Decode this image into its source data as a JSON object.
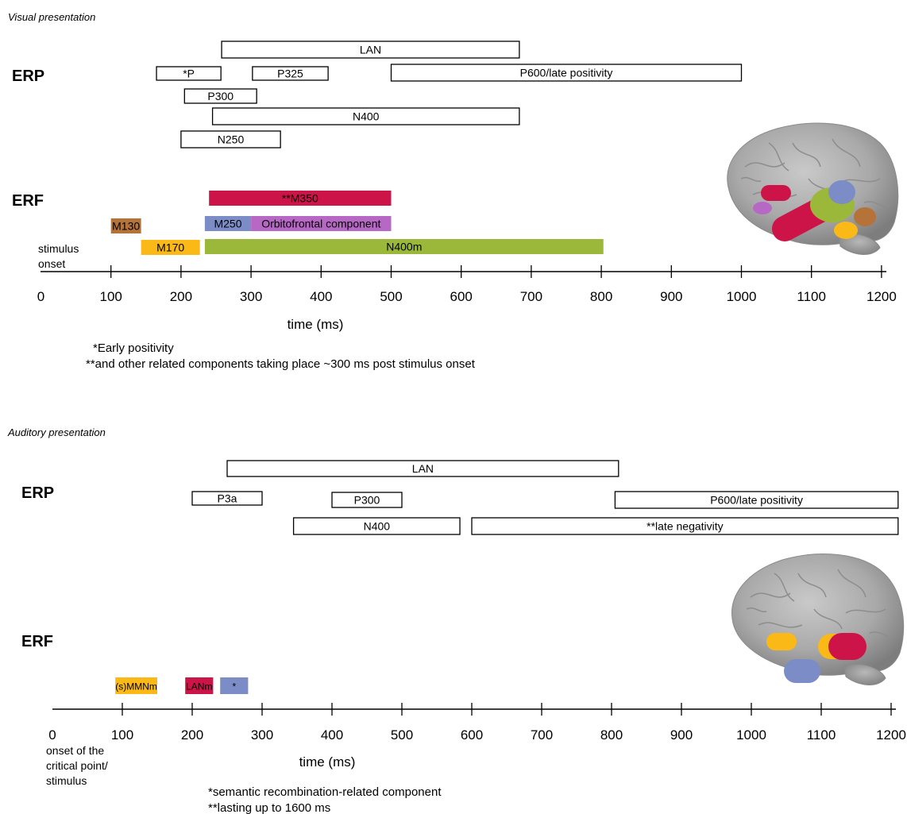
{
  "visual": {
    "section_title": "Visual presentation",
    "erp_label": "ERP",
    "erf_label": "ERF",
    "erp": [
      {
        "key": "lan",
        "label": "LAN",
        "start": 258,
        "end": 683
      },
      {
        "key": "early-positivity",
        "label": "*P",
        "start": 165,
        "end": 257
      },
      {
        "key": "p325",
        "label": "P325",
        "start": 302,
        "end": 410
      },
      {
        "key": "p600",
        "label": "P600/late positivity",
        "start": 500,
        "end": 1000
      },
      {
        "key": "p300",
        "label": "P300",
        "start": 205,
        "end": 308
      },
      {
        "key": "n400",
        "label": "N400",
        "start": 245,
        "end": 683
      },
      {
        "key": "n250",
        "label": "N250",
        "start": 200,
        "end": 342
      }
    ],
    "erf": [
      {
        "key": "m350",
        "label": "**M350",
        "start": 240,
        "end": 500,
        "color": "#cc1448"
      },
      {
        "key": "m130",
        "label": "M130",
        "start": 100,
        "end": 143,
        "color": "#b5733a"
      },
      {
        "key": "m250",
        "label": "M250",
        "start": 234,
        "end": 300,
        "color": "#7b8cc7"
      },
      {
        "key": "orbitofrontal",
        "label": "Orbitofrontal component",
        "start": 300,
        "end": 500,
        "color": "#b768c4"
      },
      {
        "key": "m170",
        "label": "M170",
        "start": 143,
        "end": 227,
        "color": "#fbb917"
      },
      {
        "key": "n400m",
        "label": "N400m",
        "start": 234,
        "end": 803,
        "color": "#9bb83a"
      }
    ],
    "onset_label_1": "stimulus",
    "onset_label_2": "onset",
    "axis_title": "time (ms)",
    "ticks": [
      0,
      100,
      200,
      300,
      400,
      500,
      600,
      700,
      800,
      900,
      1000,
      1100,
      1200
    ],
    "footnote_1": "*Early positivity",
    "footnote_2": "**and other related components taking place ~300 ms post stimulus onset"
  },
  "auditory": {
    "section_title": "Auditory presentation",
    "erp_label": "ERP",
    "erf_label": "ERF",
    "erp": [
      {
        "key": "lan",
        "label": "LAN",
        "start": 250,
        "end": 810
      },
      {
        "key": "p3a",
        "label": "P3a",
        "start": 200,
        "end": 300
      },
      {
        "key": "p300",
        "label": "P300",
        "start": 400,
        "end": 500
      },
      {
        "key": "p600",
        "label": "P600/late positivity",
        "start": 805,
        "end": 1210
      },
      {
        "key": "n400",
        "label": "N400",
        "start": 345,
        "end": 583
      },
      {
        "key": "late-negativity",
        "label": "**late negativity",
        "start": 600,
        "end": 1210
      }
    ],
    "erf": [
      {
        "key": "smmnm",
        "label": "(s)MMNm",
        "start": 90,
        "end": 150,
        "color": "#fbb917"
      },
      {
        "key": "lanm",
        "label": "LANm",
        "start": 190,
        "end": 230,
        "color": "#cc1448"
      },
      {
        "key": "semantic",
        "label": "*",
        "start": 240,
        "end": 280,
        "color": "#7b8cc7"
      }
    ],
    "onset_label_1": "onset of the",
    "onset_label_2": "critical point/",
    "onset_label_3": "stimulus",
    "axis_title": "time (ms)",
    "ticks": [
      0,
      100,
      200,
      300,
      400,
      500,
      600,
      700,
      800,
      900,
      1000,
      1100,
      1200
    ],
    "footnote_1": "*semantic recombination-related component",
    "footnote_2": "**lasting up to 1600 ms"
  },
  "colors": {
    "crimson": "#cc1448",
    "yellow": "#fbb917",
    "periwinkle": "#7b8cc7",
    "green": "#9bb83a",
    "brown": "#b5733a",
    "violet": "#b768c4",
    "brain": "#a8a8a8"
  },
  "icons": [
    "brain-lateral-view-icon"
  ]
}
